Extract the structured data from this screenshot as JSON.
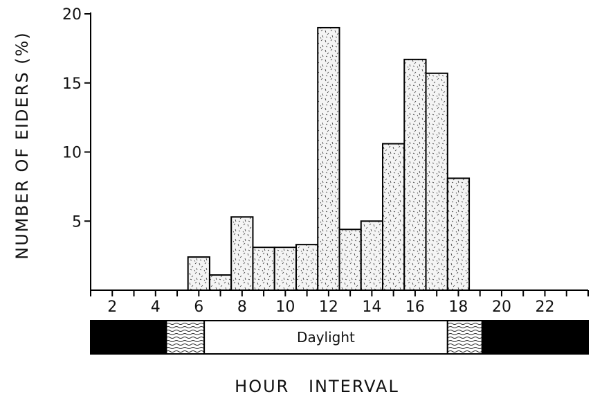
{
  "chart_data": {
    "type": "bar",
    "title": "",
    "xlabel": "HOUR INTERVAL",
    "ylabel": "NUMBER OF EIDERS (%)",
    "ylim": [
      0,
      20
    ],
    "xlim": [
      1,
      24
    ],
    "y_ticks": [
      5,
      10,
      15,
      20
    ],
    "y_tick_labels": [
      "5",
      "10",
      "15",
      "20"
    ],
    "x_ticks": [
      2,
      4,
      6,
      8,
      10,
      12,
      14,
      16,
      18,
      20,
      22
    ],
    "x_tick_labels": [
      "2",
      "4",
      "6",
      "8",
      "10",
      "12",
      "14",
      "16",
      "18",
      "20",
      "22"
    ],
    "grid": false,
    "categories": [
      "6",
      "7",
      "8",
      "9",
      "10",
      "11",
      "12",
      "13",
      "14",
      "15",
      "16",
      "17",
      "18"
    ],
    "values": [
      2.4,
      1.1,
      5.3,
      3.1,
      3.1,
      3.3,
      19.0,
      4.4,
      5.0,
      10.6,
      16.7,
      15.7,
      8.1
    ],
    "bar_fill": "stippled"
  },
  "light_band": {
    "label": "Daylight",
    "segments": [
      {
        "type": "dark",
        "start": 1,
        "end": 4.5
      },
      {
        "type": "twilight",
        "start": 4.5,
        "end": 6.25
      },
      {
        "type": "daylight",
        "start": 6.25,
        "end": 17.5
      },
      {
        "type": "twilight",
        "start": 17.5,
        "end": 19.1
      },
      {
        "type": "dark",
        "start": 19.1,
        "end": 24
      }
    ]
  }
}
